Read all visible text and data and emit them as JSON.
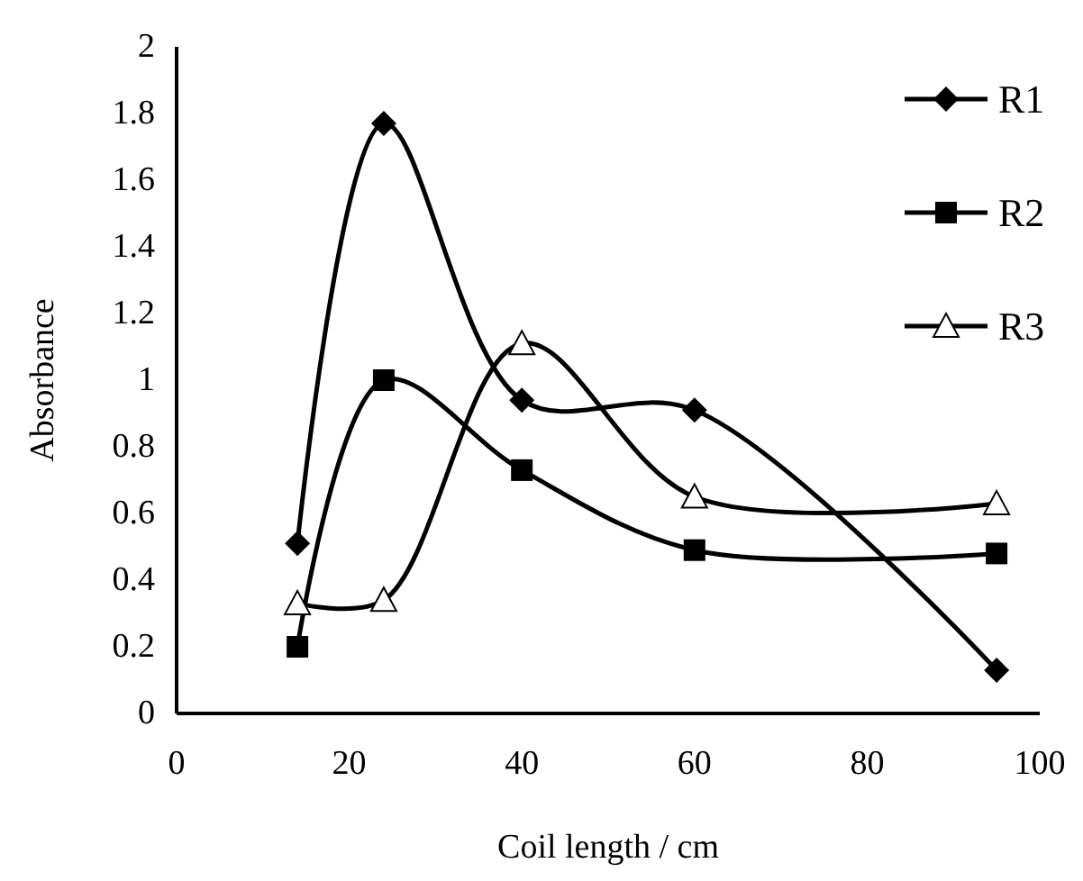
{
  "chart_data": {
    "type": "line",
    "xlabel": "Coil length / cm",
    "ylabel": "Absorbance",
    "xlim": [
      0,
      100
    ],
    "xticks": [
      0,
      20,
      40,
      60,
      80,
      100
    ],
    "ylim": [
      0,
      2
    ],
    "yticks": [
      0,
      0.2,
      0.4,
      0.6,
      0.8,
      1,
      1.2,
      1.4,
      1.6,
      1.8,
      2
    ],
    "x": [
      14,
      24,
      40,
      60,
      95
    ],
    "grid": false,
    "legend": "top right",
    "line_style": "solid",
    "series": [
      {
        "name": "R1",
        "color": "#000000",
        "marker": "diamond",
        "values": [
          0.51,
          1.77,
          0.94,
          0.91,
          0.13
        ]
      },
      {
        "name": "R2",
        "color": "#000000",
        "marker": "square",
        "values": [
          0.2,
          1.0,
          0.73,
          0.49,
          0.48
        ]
      },
      {
        "name": "R3",
        "color": "#000000",
        "marker": "triangle",
        "values": [
          0.33,
          0.34,
          1.11,
          0.65,
          0.63
        ]
      }
    ]
  }
}
